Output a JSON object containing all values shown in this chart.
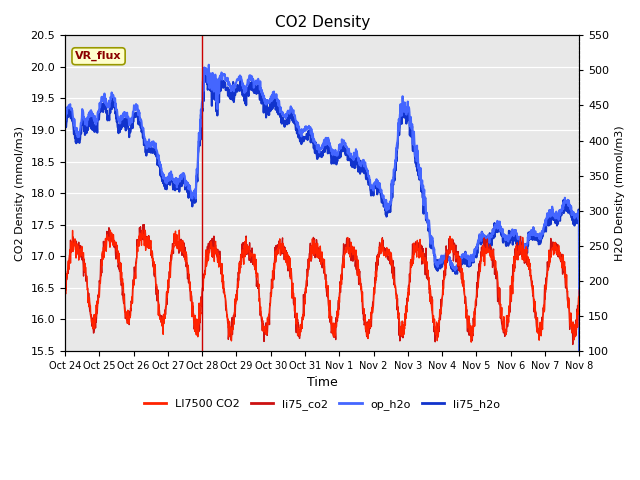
{
  "title": "CO2 Density",
  "xlabel": "Time",
  "ylabel_left": "CO2 Density (mmol/m3)",
  "ylabel_right": "H2O Density (mmol/m3)",
  "ylim_left": [
    15.5,
    20.5
  ],
  "ylim_right": [
    100,
    550
  ],
  "yticks_left": [
    15.5,
    16.0,
    16.5,
    17.0,
    17.5,
    18.0,
    18.5,
    19.0,
    19.5,
    20.0,
    20.5
  ],
  "yticks_right": [
    100,
    150,
    200,
    250,
    300,
    350,
    400,
    450,
    500,
    550
  ],
  "xtick_labels": [
    "Oct 24",
    "Oct 25",
    "Oct 26",
    "Oct 27",
    "Oct 28",
    "Oct 29",
    "Oct 30",
    "Oct 31",
    "Nov 1",
    "Nov 2",
    "Nov 3",
    "Nov 4",
    "Nov 5",
    "Nov 6",
    "Nov 7",
    "Nov 8"
  ],
  "vline_color": "#cc0000",
  "legend_box_text": "VR_flux",
  "legend_box_bg": "#ffffcc",
  "legend_box_border": "#999900",
  "background_color": "#e8e8e8",
  "colors": {
    "LI7500_CO2": "#ff2200",
    "li75_co2": "#cc1111",
    "op_h2o": "#4466ff",
    "li75_h2o": "#1133cc"
  },
  "linewidths": {
    "LI7500_CO2": 1.0,
    "li75_co2": 1.0,
    "op_h2o": 1.5,
    "li75_h2o": 1.5
  }
}
